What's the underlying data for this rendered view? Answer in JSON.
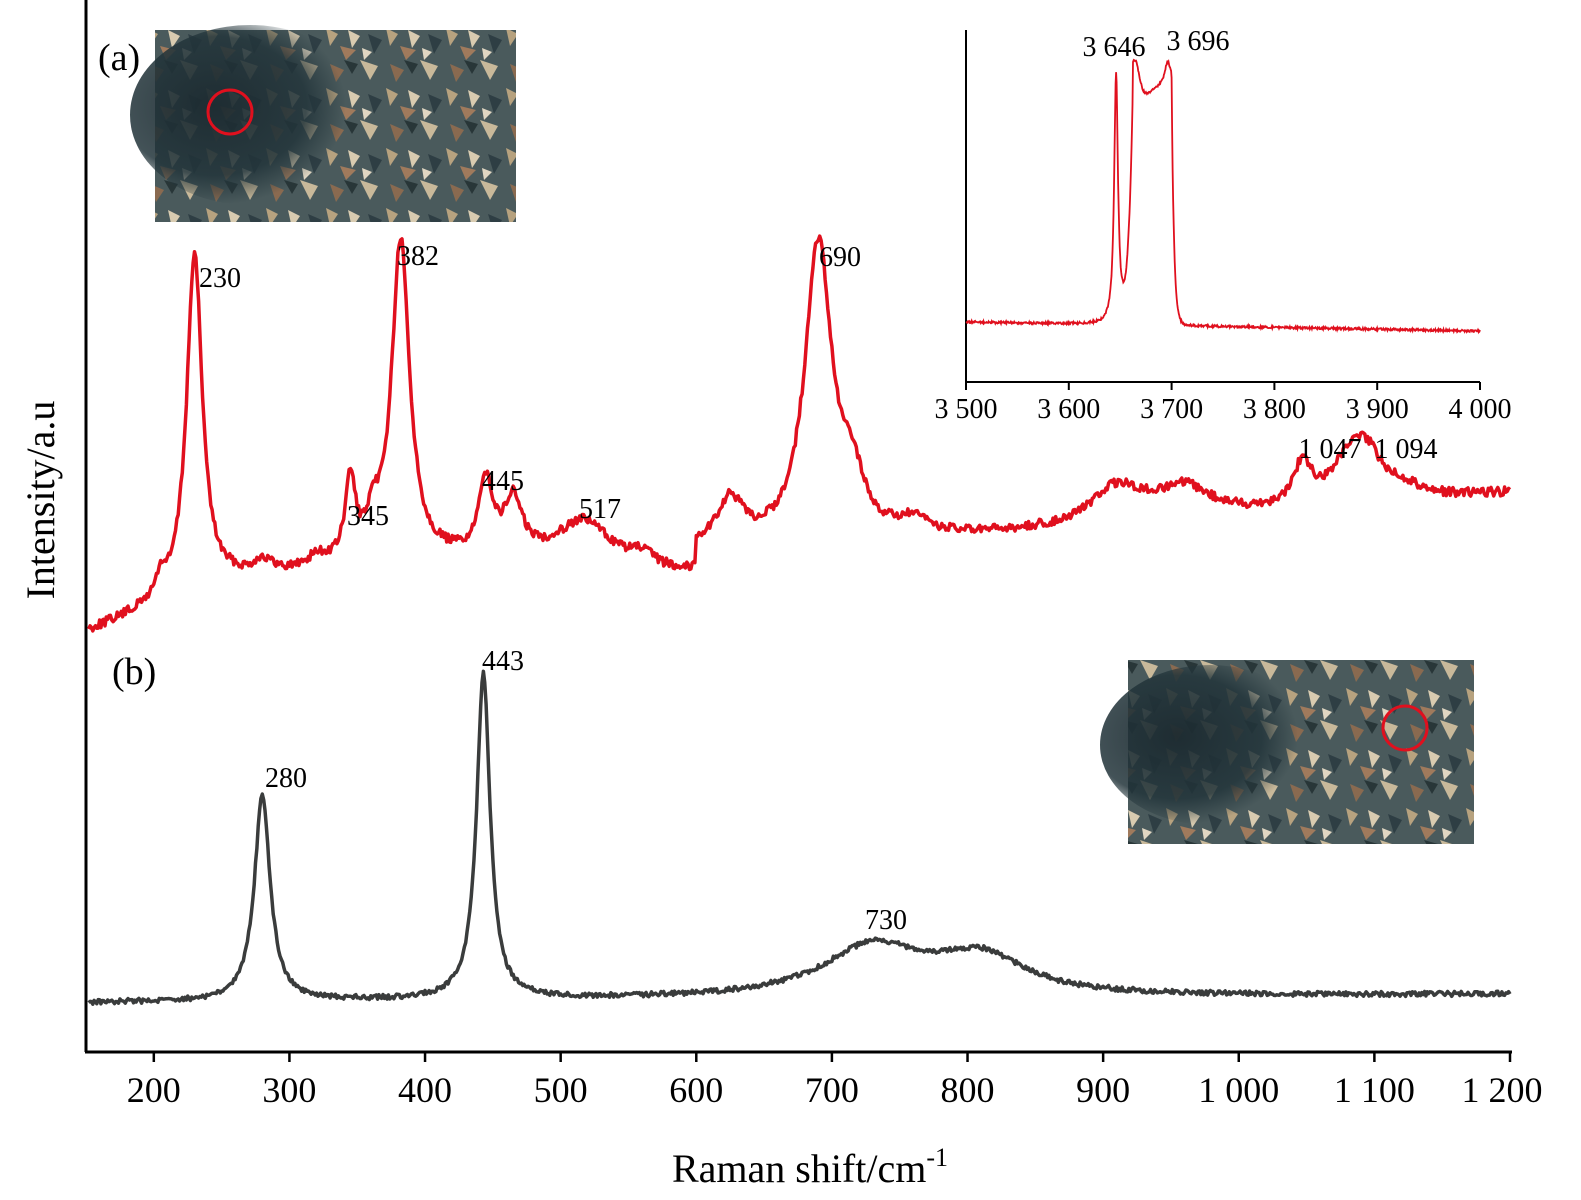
{
  "chart_data": {
    "type": "line",
    "xlabel": "Raman shift/cm",
    "xlabel_superscript": "-1",
    "ylabel": "Intensity/a.u",
    "xlim": [
      150,
      1200
    ],
    "xticks": [
      200,
      300,
      400,
      500,
      600,
      700,
      800,
      900,
      1000,
      1100,
      1200
    ],
    "xtick_labels": [
      "200",
      "300",
      "400",
      "500",
      "600",
      "700",
      "800",
      "900",
      "1 000",
      "1 100",
      "1 200"
    ],
    "yticks_shown": false,
    "series": [
      {
        "panel": "(a)",
        "color": "#e0101e",
        "baseline": 0.48,
        "peaks": [
          {
            "x": 230,
            "label": "230"
          },
          {
            "x": 345,
            "label": "345"
          },
          {
            "x": 382,
            "label": "382"
          },
          {
            "x": 445,
            "label": "445"
          },
          {
            "x": 517,
            "label": "517"
          },
          {
            "x": 690,
            "label": "690"
          },
          {
            "x": 1047,
            "label": "1 047"
          },
          {
            "x": 1094,
            "label": "1 094"
          }
        ]
      },
      {
        "panel": "(b)",
        "color": "#3a3c3c",
        "baseline": 0.0,
        "peaks": [
          {
            "x": 280,
            "label": "280"
          },
          {
            "x": 443,
            "label": "443"
          },
          {
            "x": 730,
            "label": "730"
          }
        ]
      }
    ],
    "inset": {
      "type": "line",
      "color": "#e0101e",
      "xlim": [
        3500,
        4000
      ],
      "xticks": [
        3500,
        3600,
        3700,
        3800,
        3900,
        4000
      ],
      "xtick_labels": [
        "3 500",
        "3 600",
        "3 700",
        "3 800",
        "3 900",
        "4 000"
      ],
      "peaks": [
        {
          "x": 3646,
          "label": "3 646"
        },
        {
          "x": 3696,
          "label": "3 696"
        }
      ]
    }
  },
  "panels": {
    "a": "(a)",
    "b": "(b)"
  },
  "micrographs": {
    "a_marker_color": "#e0101e",
    "b_marker_color": "#e0101e"
  }
}
